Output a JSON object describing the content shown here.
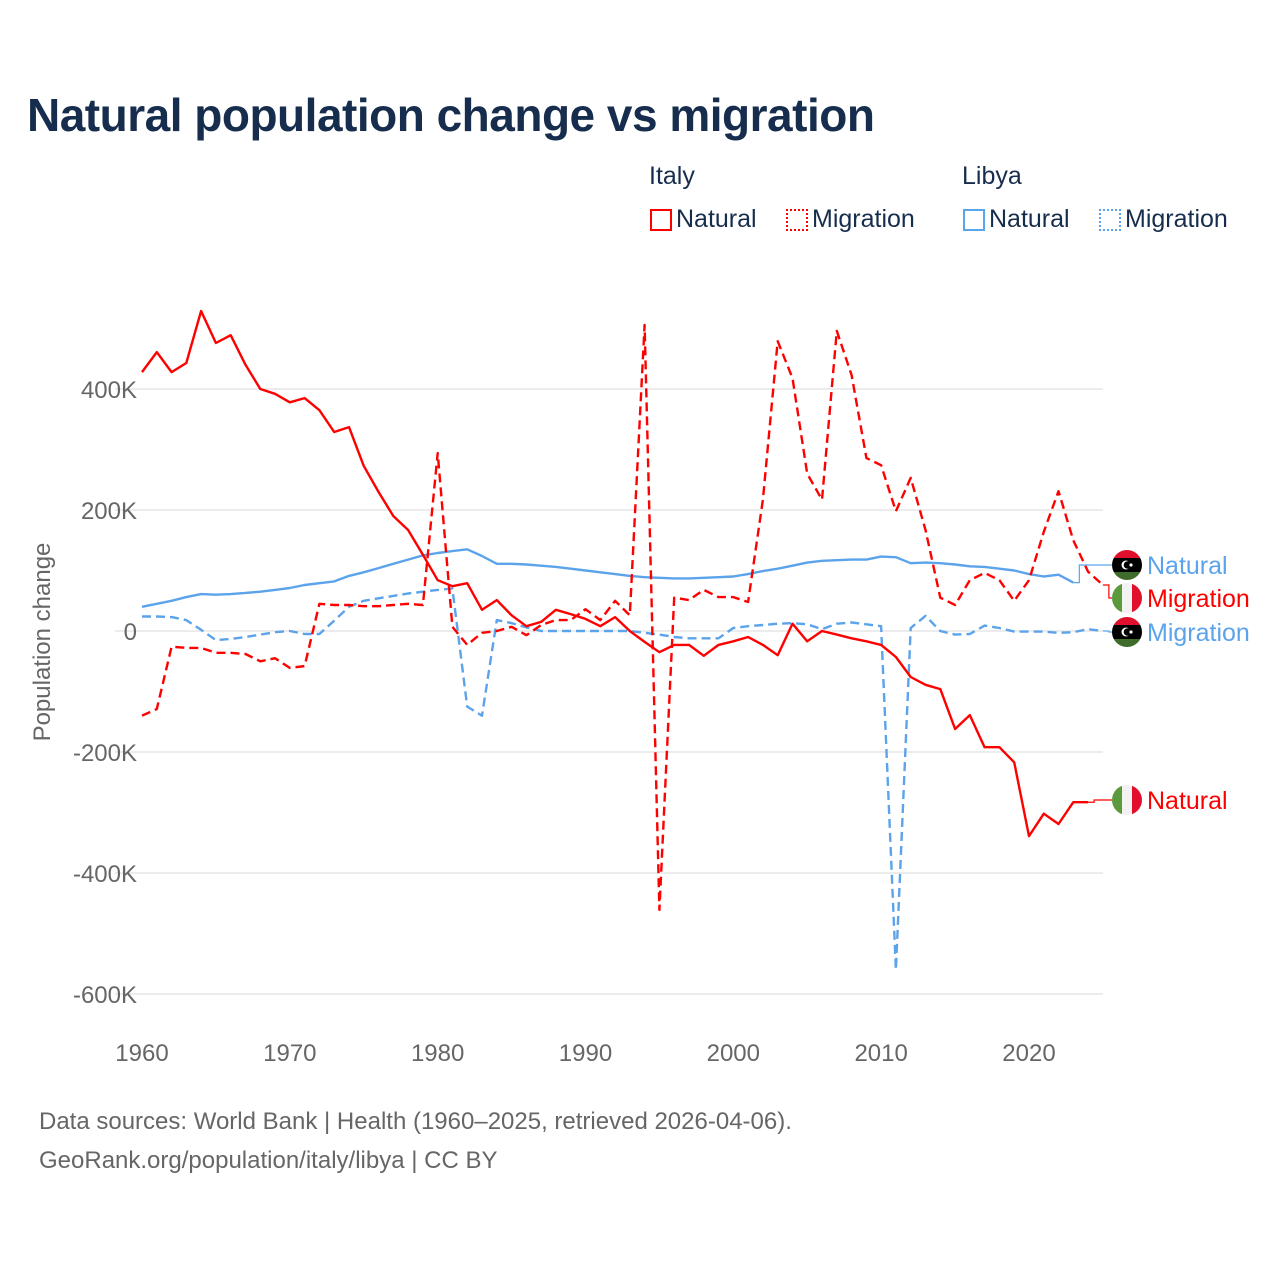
{
  "chart_data": {
    "type": "line",
    "title": "Natural population change vs migration",
    "xlabel": "",
    "ylabel": "Population change",
    "xlim": [
      1960,
      2025
    ],
    "ylim": [
      -650000,
      560000
    ],
    "x_ticks": [
      "1960",
      "1970",
      "1980",
      "1990",
      "2000",
      "2010",
      "2020"
    ],
    "y_ticks": [
      {
        "v": 400000,
        "label": "400K"
      },
      {
        "v": 200000,
        "label": "200K"
      },
      {
        "v": 0,
        "label": "0"
      },
      {
        "v": -200000,
        "label": "-200K"
      },
      {
        "v": -400000,
        "label": "-400K"
      },
      {
        "v": -600000,
        "label": "-600K"
      }
    ],
    "grid": true,
    "legend": {
      "placement": "top-right",
      "groups": [
        {
          "title": "Italy",
          "items": [
            "Natural",
            "Migration"
          ]
        },
        {
          "title": "Libya",
          "items": [
            "Natural",
            "Migration"
          ]
        }
      ]
    },
    "start_year": 1960,
    "series": [
      {
        "name": "Italy Natural",
        "country": "Italy",
        "kind": "Natural",
        "label": "Natural",
        "color": "#ff0000",
        "dashed": false,
        "values": [
          428,
          461,
          428,
          443,
          529,
          476,
          489,
          440,
          400,
          392,
          378,
          385,
          365,
          329,
          337,
          273,
          230,
          190,
          167,
          126,
          84,
          74,
          79,
          35,
          51,
          26,
          8,
          15,
          35,
          28,
          20,
          8,
          23,
          0,
          -18,
          -35,
          -23,
          -23,
          -41,
          -23,
          -17,
          -10,
          -23,
          -40,
          12,
          -17,
          0,
          -6,
          -12,
          -17,
          -23,
          -43,
          -76,
          -89,
          -96,
          -162,
          -139,
          -192,
          -192,
          -217,
          -339,
          -302,
          -319,
          -283,
          -283
        ]
      },
      {
        "name": "Italy Migration",
        "country": "Italy",
        "kind": "Migration",
        "label": "Migration",
        "color": "#ff0000",
        "dashed": true,
        "values": [
          -140,
          -129,
          -26,
          -28,
          -28,
          -36,
          -36,
          -38,
          -50,
          -45,
          -61,
          -58,
          45,
          43,
          43,
          41,
          41,
          43,
          45,
          43,
          294,
          7,
          -23,
          -3,
          0,
          7,
          -7,
          10,
          18,
          18,
          36,
          18,
          50,
          26,
          506,
          -461,
          55,
          51,
          68,
          56,
          56,
          48,
          217,
          479,
          418,
          260,
          217,
          496,
          423,
          286,
          274,
          198,
          253,
          167,
          55,
          43,
          84,
          96,
          84,
          50,
          84,
          164,
          231,
          150,
          98,
          76
        ]
      },
      {
        "name": "Libya Natural",
        "country": "Libya",
        "kind": "Natural",
        "label": "Natural",
        "color": "#5ba3ea",
        "dashed": false,
        "values": [
          40,
          45,
          50,
          56,
          61,
          60,
          61,
          63,
          65,
          68,
          71,
          76,
          79,
          82,
          91,
          97,
          104,
          111,
          118,
          125,
          129,
          132,
          135,
          124,
          111,
          111,
          110,
          108,
          106,
          103,
          100,
          97,
          94,
          91,
          89,
          88,
          87,
          87,
          88,
          89,
          90,
          94,
          99,
          103,
          108,
          113,
          116,
          117,
          118,
          118,
          123,
          122,
          112,
          113,
          112,
          110,
          107,
          106,
          103,
          100,
          94,
          90,
          93,
          80
        ]
      },
      {
        "name": "Libya Migration",
        "country": "Libya",
        "kind": "Migration",
        "label": "Migration",
        "color": "#5ba3ea",
        "dashed": true,
        "values": [
          24,
          24,
          23,
          18,
          2,
          -15,
          -13,
          -10,
          -6,
          -2,
          0,
          -5,
          -5,
          17,
          40,
          50,
          54,
          58,
          62,
          65,
          68,
          70,
          -125,
          -140,
          18,
          13,
          6,
          0,
          0,
          0,
          0,
          0,
          0,
          0,
          -3,
          -6,
          -10,
          -12,
          -12,
          -12,
          5,
          8,
          10,
          12,
          13,
          11,
          3,
          12,
          14,
          11,
          8,
          -560,
          5,
          25,
          0,
          -6,
          -5,
          9,
          5,
          -1,
          -1,
          -1,
          -3,
          -2,
          3,
          0
        ]
      }
    ],
    "value_unit": "thousands"
  },
  "footer": {
    "line1": "Data sources: World Bank | Health (1960–2025, retrieved 2026-04-06).",
    "line2": "GeoRank.org/population/italy/libya | CC BY"
  }
}
